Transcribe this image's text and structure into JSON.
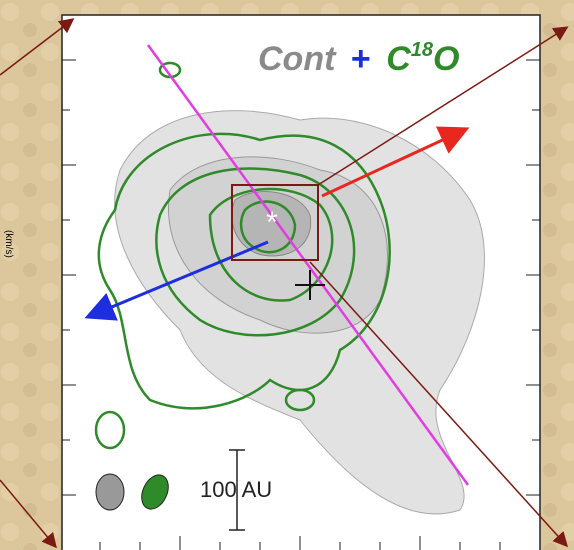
{
  "figure": {
    "label_cont": "Cont",
    "label_plus": "+",
    "label_molecule": "C",
    "label_isotope": "18",
    "label_molecule_end": "O",
    "scale_label": "100 AU",
    "side_axis_label": "(km/s)"
  }
}
